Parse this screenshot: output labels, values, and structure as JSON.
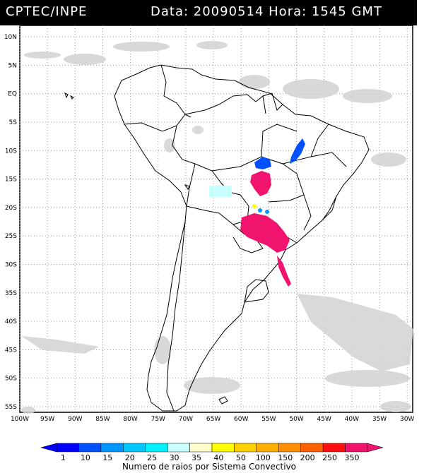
{
  "header": {
    "organization": "CPTEC/INPE",
    "date_label": "Data:",
    "date_value": "20090514",
    "time_label": "Hora:",
    "time_value": "1545",
    "time_zone": "GMT"
  },
  "map": {
    "latitude_labels": [
      "10N",
      "5N",
      "EQ",
      "5S",
      "10S",
      "15S",
      "20S",
      "25S",
      "30S",
      "35S",
      "40S",
      "45S",
      "50S",
      "55S"
    ],
    "longitude_labels": [
      "100W",
      "95W",
      "90W",
      "85W",
      "80W",
      "75W",
      "70W",
      "65W",
      "60W",
      "55W",
      "50W",
      "45W",
      "40W",
      "35W",
      "30W"
    ],
    "lon_range": [
      -100,
      -29
    ],
    "lat_range": [
      -56,
      12
    ],
    "background_color": "#ffffff",
    "cloud_color": "#d2d2d2",
    "border_color": "#000000",
    "grid": "dotted"
  },
  "legend": {
    "title": "Numero de raios por Sistema Convectivo",
    "ticks": [
      "1",
      "10",
      "15",
      "20",
      "25",
      "30",
      "35",
      "40",
      "50",
      "100",
      "150",
      "200",
      "250",
      "350"
    ],
    "colors": [
      "#0000ff",
      "#0050ff",
      "#0096ff",
      "#00c8ff",
      "#00f0ff",
      "#c8ffff",
      "#fffdc8",
      "#ffff00",
      "#ffd000",
      "#ffb000",
      "#ff9000",
      "#ff6000",
      "#ff1010",
      "#f0146e"
    ]
  }
}
